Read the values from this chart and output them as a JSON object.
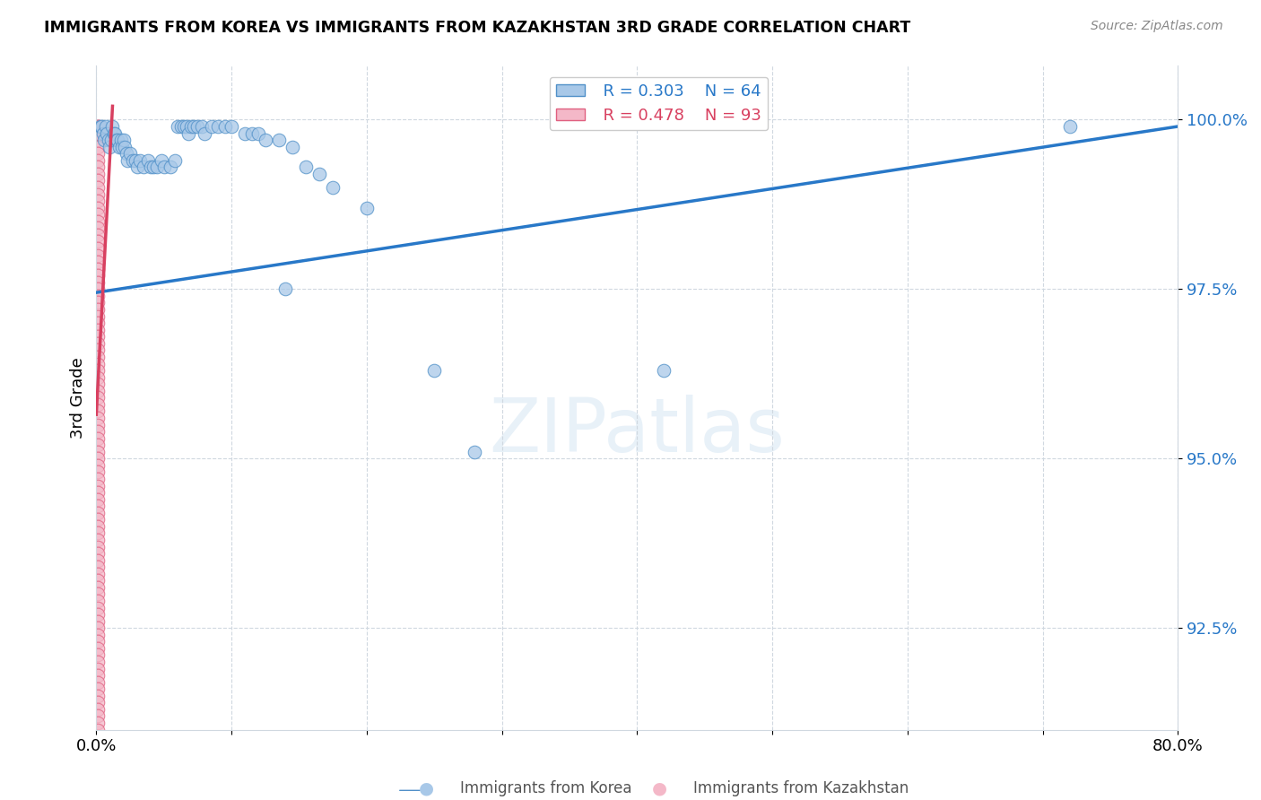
{
  "title": "IMMIGRANTS FROM KOREA VS IMMIGRANTS FROM KAZAKHSTAN 3RD GRADE CORRELATION CHART",
  "source": "Source: ZipAtlas.com",
  "ylabel": "3rd Grade",
  "ytick_labels": [
    "92.5%",
    "95.0%",
    "97.5%",
    "100.0%"
  ],
  "ytick_values": [
    0.925,
    0.95,
    0.975,
    1.0
  ],
  "legend_blue": "Immigrants from Korea",
  "legend_pink": "Immigrants from Kazakhstan",
  "legend_r_blue": "R = 0.303",
  "legend_n_blue": "N = 64",
  "legend_r_pink": "R = 0.478",
  "legend_n_pink": "N = 93",
  "blue_color": "#a8c8e8",
  "pink_color": "#f4b8c8",
  "blue_edge": "#5090c8",
  "pink_edge": "#e06080",
  "trend_blue": "#2878c8",
  "trend_pink": "#d84060",
  "xmin": 0.0,
  "xmax": 0.8,
  "ymin": 0.91,
  "ymax": 1.008,
  "blue_points": [
    [
      0.003,
      0.999
    ],
    [
      0.004,
      0.999
    ],
    [
      0.005,
      0.998
    ],
    [
      0.006,
      0.997
    ],
    [
      0.007,
      0.999
    ],
    [
      0.008,
      0.998
    ],
    [
      0.009,
      0.997
    ],
    [
      0.01,
      0.996
    ],
    [
      0.011,
      0.997
    ],
    [
      0.012,
      0.999
    ],
    [
      0.013,
      0.998
    ],
    [
      0.014,
      0.998
    ],
    [
      0.015,
      0.997
    ],
    [
      0.016,
      0.997
    ],
    [
      0.017,
      0.996
    ],
    [
      0.018,
      0.997
    ],
    [
      0.019,
      0.996
    ],
    [
      0.02,
      0.997
    ],
    [
      0.021,
      0.996
    ],
    [
      0.022,
      0.995
    ],
    [
      0.023,
      0.994
    ],
    [
      0.025,
      0.995
    ],
    [
      0.027,
      0.994
    ],
    [
      0.029,
      0.994
    ],
    [
      0.03,
      0.993
    ],
    [
      0.032,
      0.994
    ],
    [
      0.035,
      0.993
    ],
    [
      0.038,
      0.994
    ],
    [
      0.04,
      0.993
    ],
    [
      0.042,
      0.993
    ],
    [
      0.045,
      0.993
    ],
    [
      0.048,
      0.994
    ],
    [
      0.05,
      0.993
    ],
    [
      0.055,
      0.993
    ],
    [
      0.058,
      0.994
    ],
    [
      0.06,
      0.999
    ],
    [
      0.063,
      0.999
    ],
    [
      0.065,
      0.999
    ],
    [
      0.067,
      0.999
    ],
    [
      0.068,
      0.998
    ],
    [
      0.07,
      0.999
    ],
    [
      0.072,
      0.999
    ],
    [
      0.075,
      0.999
    ],
    [
      0.078,
      0.999
    ],
    [
      0.08,
      0.998
    ],
    [
      0.085,
      0.999
    ],
    [
      0.09,
      0.999
    ],
    [
      0.095,
      0.999
    ],
    [
      0.1,
      0.999
    ],
    [
      0.11,
      0.998
    ],
    [
      0.115,
      0.998
    ],
    [
      0.12,
      0.998
    ],
    [
      0.125,
      0.997
    ],
    [
      0.135,
      0.997
    ],
    [
      0.145,
      0.996
    ],
    [
      0.155,
      0.993
    ],
    [
      0.165,
      0.992
    ],
    [
      0.175,
      0.99
    ],
    [
      0.2,
      0.987
    ],
    [
      0.14,
      0.975
    ],
    [
      0.25,
      0.963
    ],
    [
      0.28,
      0.951
    ],
    [
      0.42,
      0.963
    ],
    [
      0.72,
      0.999
    ]
  ],
  "pink_points": [
    [
      0.001,
      0.999
    ],
    [
      0.001,
      0.999
    ],
    [
      0.001,
      0.998
    ],
    [
      0.001,
      0.997
    ],
    [
      0.001,
      0.996
    ],
    [
      0.001,
      0.995
    ],
    [
      0.001,
      0.994
    ],
    [
      0.001,
      0.993
    ],
    [
      0.001,
      0.992
    ],
    [
      0.001,
      0.991
    ],
    [
      0.001,
      0.99
    ],
    [
      0.001,
      0.989
    ],
    [
      0.001,
      0.988
    ],
    [
      0.001,
      0.987
    ],
    [
      0.001,
      0.986
    ],
    [
      0.001,
      0.985
    ],
    [
      0.001,
      0.984
    ],
    [
      0.001,
      0.983
    ],
    [
      0.001,
      0.982
    ],
    [
      0.001,
      0.981
    ],
    [
      0.001,
      0.98
    ],
    [
      0.001,
      0.979
    ],
    [
      0.001,
      0.978
    ],
    [
      0.001,
      0.977
    ],
    [
      0.001,
      0.976
    ],
    [
      0.001,
      0.975
    ],
    [
      0.001,
      0.974
    ],
    [
      0.001,
      0.973
    ],
    [
      0.001,
      0.972
    ],
    [
      0.001,
      0.971
    ],
    [
      0.001,
      0.97
    ],
    [
      0.001,
      0.969
    ],
    [
      0.001,
      0.968
    ],
    [
      0.001,
      0.967
    ],
    [
      0.001,
      0.966
    ],
    [
      0.001,
      0.965
    ],
    [
      0.001,
      0.964
    ],
    [
      0.001,
      0.963
    ],
    [
      0.001,
      0.962
    ],
    [
      0.001,
      0.961
    ],
    [
      0.001,
      0.96
    ],
    [
      0.001,
      0.959
    ],
    [
      0.001,
      0.958
    ],
    [
      0.001,
      0.957
    ],
    [
      0.001,
      0.956
    ],
    [
      0.001,
      0.955
    ],
    [
      0.001,
      0.954
    ],
    [
      0.001,
      0.953
    ],
    [
      0.001,
      0.952
    ],
    [
      0.001,
      0.951
    ],
    [
      0.001,
      0.95
    ],
    [
      0.001,
      0.949
    ],
    [
      0.001,
      0.948
    ],
    [
      0.001,
      0.947
    ],
    [
      0.001,
      0.946
    ],
    [
      0.001,
      0.945
    ],
    [
      0.001,
      0.944
    ],
    [
      0.001,
      0.943
    ],
    [
      0.001,
      0.942
    ],
    [
      0.001,
      0.941
    ],
    [
      0.001,
      0.94
    ],
    [
      0.001,
      0.939
    ],
    [
      0.001,
      0.938
    ],
    [
      0.001,
      0.937
    ],
    [
      0.001,
      0.936
    ],
    [
      0.001,
      0.935
    ],
    [
      0.001,
      0.934
    ],
    [
      0.001,
      0.933
    ],
    [
      0.001,
      0.932
    ],
    [
      0.001,
      0.931
    ],
    [
      0.001,
      0.93
    ],
    [
      0.001,
      0.929
    ],
    [
      0.001,
      0.928
    ],
    [
      0.001,
      0.927
    ],
    [
      0.001,
      0.926
    ],
    [
      0.001,
      0.925
    ],
    [
      0.001,
      0.924
    ],
    [
      0.001,
      0.923
    ],
    [
      0.001,
      0.922
    ],
    [
      0.001,
      0.921
    ],
    [
      0.001,
      0.92
    ],
    [
      0.001,
      0.919
    ],
    [
      0.001,
      0.918
    ],
    [
      0.001,
      0.917
    ],
    [
      0.001,
      0.916
    ],
    [
      0.001,
      0.915
    ],
    [
      0.001,
      0.914
    ],
    [
      0.001,
      0.913
    ],
    [
      0.001,
      0.912
    ],
    [
      0.001,
      0.911
    ],
    [
      0.001,
      0.91
    ],
    [
      0.002,
      0.999
    ],
    [
      0.002,
      0.998
    ]
  ],
  "blue_trend_x": [
    0.0,
    0.8
  ],
  "blue_trend_y": [
    0.9745,
    0.999
  ],
  "pink_trend_x": [
    0.0,
    0.012
  ],
  "pink_trend_y": [
    0.9565,
    1.002
  ]
}
